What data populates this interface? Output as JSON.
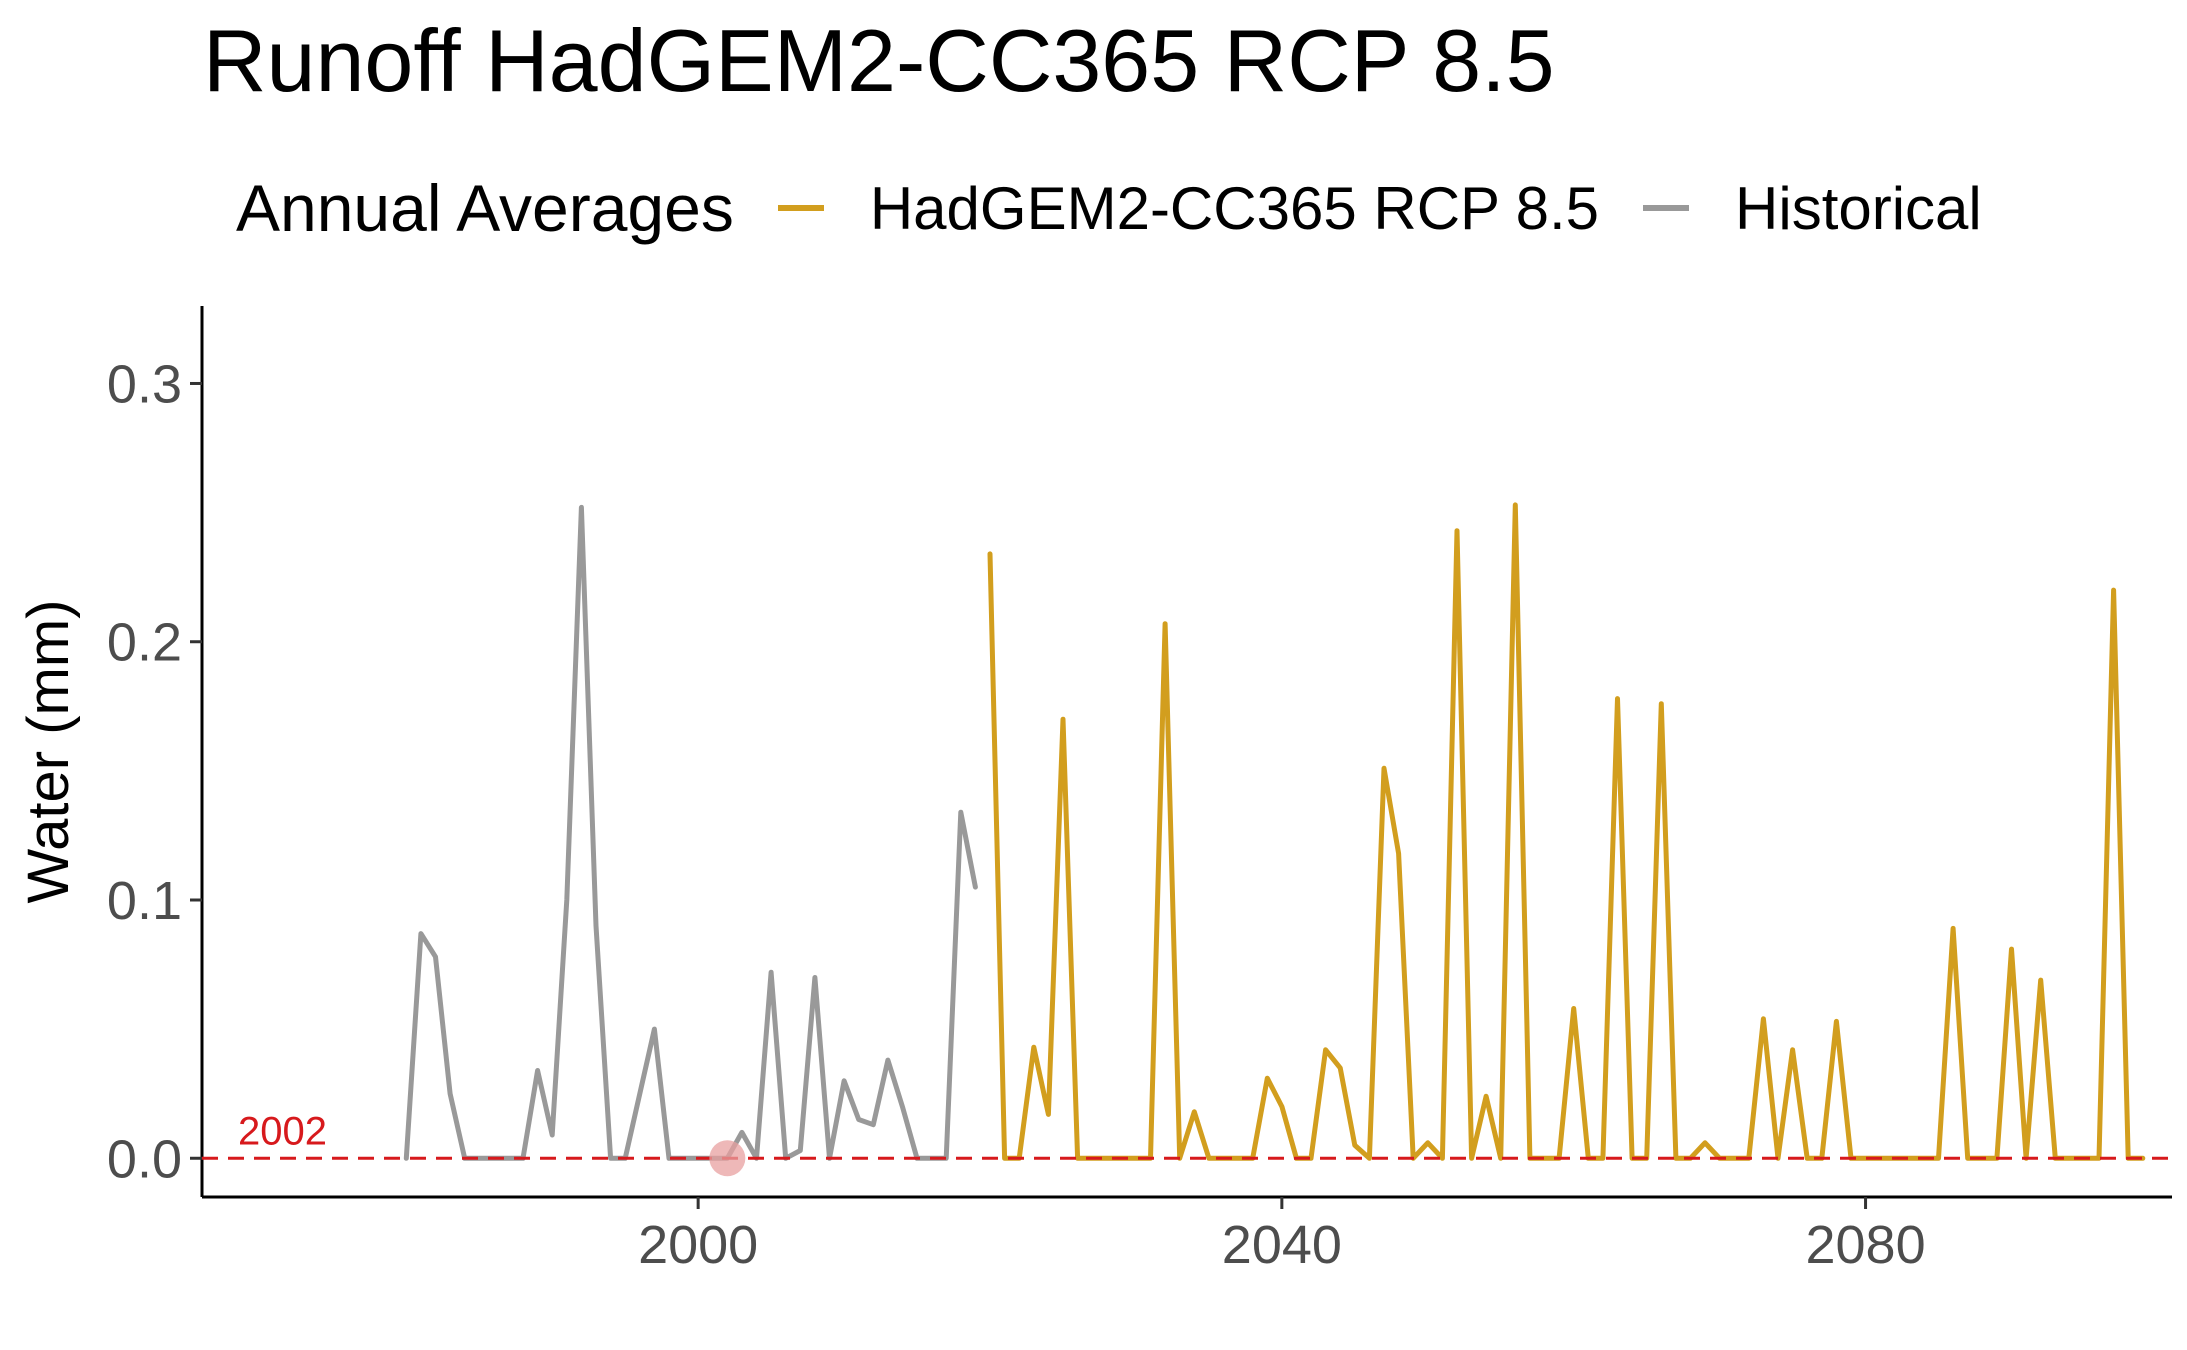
{
  "chart_data": {
    "type": "line",
    "title": "Runoff HadGEM2-CC365 RCP 8.5",
    "xlabel": "",
    "ylabel": "Water (mm)",
    "xlim": [
      1966,
      2101
    ],
    "ylim": [
      -0.015,
      0.33
    ],
    "x_ticks": [
      2000,
      2040,
      2080
    ],
    "y_ticks": [
      0.0,
      0.1,
      0.2,
      0.3
    ],
    "y_tick_labels": [
      "0.0",
      "0.1",
      "0.2",
      "0.3"
    ],
    "grid": false,
    "legend": {
      "title": "Annual Averages",
      "position": "top",
      "entries": [
        "HadGEM2-CC365 RCP 8.5",
        "Historical"
      ]
    },
    "reference_line": {
      "y": 0,
      "style": "dashed",
      "color": "#d7191c",
      "label": "2002"
    },
    "highlight_point": {
      "x": 2002,
      "y": 0,
      "color": "#e8a0a0"
    },
    "series": [
      {
        "name": "Historical",
        "color": "#999999",
        "x": [
          1980,
          1981,
          1982,
          1983,
          1984,
          1985,
          1986,
          1987,
          1988,
          1989,
          1990,
          1991,
          1992,
          1993,
          1994,
          1995,
          1996,
          1997,
          1998,
          1999,
          2000,
          2001,
          2002,
          2003,
          2004,
          2005,
          2006,
          2007,
          2008,
          2009,
          2010,
          2011,
          2012,
          2013,
          2014,
          2015,
          2016,
          2017,
          2018,
          2019
        ],
        "values": [
          0.0,
          0.087,
          0.078,
          0.025,
          0.0,
          0.0,
          0.0,
          0.0,
          0.0,
          0.034,
          0.009,
          0.1,
          0.252,
          0.09,
          0.0,
          0.0,
          0.025,
          0.05,
          0.0,
          0.0,
          0.0,
          0.0,
          0.0,
          0.01,
          0.0,
          0.072,
          0.0,
          0.003,
          0.07,
          0.0,
          0.03,
          0.015,
          0.013,
          0.038,
          0.02,
          0.0,
          0.0,
          0.0,
          0.134,
          0.105
        ]
      },
      {
        "name": "HadGEM2-CC365 RCP 8.5",
        "color": "#d29e1e",
        "x": [
          2020,
          2021,
          2022,
          2023,
          2024,
          2025,
          2026,
          2027,
          2028,
          2029,
          2030,
          2031,
          2032,
          2033,
          2034,
          2035,
          2036,
          2037,
          2038,
          2039,
          2040,
          2041,
          2042,
          2043,
          2044,
          2045,
          2046,
          2047,
          2048,
          2049,
          2050,
          2051,
          2052,
          2053,
          2054,
          2055,
          2056,
          2057,
          2058,
          2059,
          2060,
          2061,
          2062,
          2063,
          2064,
          2065,
          2066,
          2067,
          2068,
          2069,
          2070,
          2071,
          2072,
          2073,
          2074,
          2075,
          2076,
          2077,
          2078,
          2079,
          2080,
          2081,
          2082,
          2083,
          2084,
          2085,
          2086,
          2087,
          2088,
          2089,
          2090,
          2091,
          2092,
          2093,
          2094,
          2095,
          2096,
          2097,
          2098,
          2099
        ],
        "values": [
          0.234,
          0.0,
          0.0,
          0.043,
          0.017,
          0.17,
          0.0,
          0.0,
          0.0,
          0.0,
          0.0,
          0.0,
          0.207,
          0.0,
          0.018,
          0.0,
          0.0,
          0.0,
          0.0,
          0.031,
          0.02,
          0.0,
          0.0,
          0.042,
          0.035,
          0.005,
          0.0,
          0.151,
          0.118,
          0.0,
          0.006,
          0.0,
          0.243,
          0.0,
          0.024,
          0.0,
          0.253,
          0.0,
          0.0,
          0.0,
          0.058,
          0.0,
          0.0,
          0.178,
          0.0,
          0.0,
          0.176,
          0.0,
          0.0,
          0.006,
          0.0,
          0.0,
          0.0,
          0.054,
          0.0,
          0.042,
          0.0,
          0.0,
          0.053,
          0.0,
          0.0,
          0.0,
          0.0,
          0.0,
          0.0,
          0.0,
          0.089,
          0.0,
          0.0,
          0.0,
          0.081,
          0.0,
          0.069,
          0.0,
          0.0,
          0.0,
          0.0,
          0.22,
          0.0,
          0.0
        ]
      }
    ]
  }
}
